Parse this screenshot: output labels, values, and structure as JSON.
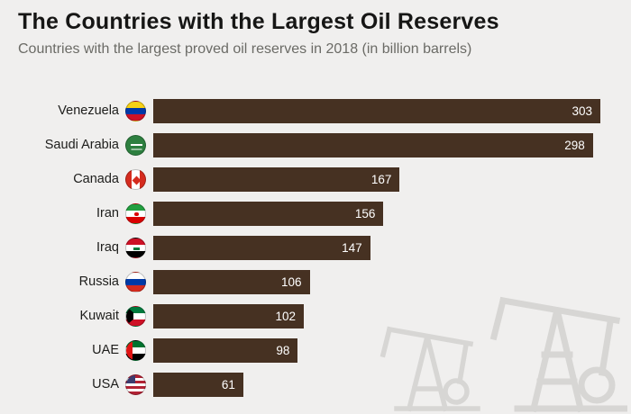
{
  "header": {
    "title": "The Countries with the Largest Oil Reserves",
    "subtitle": "Countries with the largest proved oil reserves in 2018 (in billion barrels)"
  },
  "chart_data": {
    "type": "bar",
    "orientation": "horizontal",
    "title": "The Countries with the Largest Oil Reserves",
    "subtitle": "Countries with the largest proved oil reserves in 2018 (in billion barrels)",
    "unit": "billion barrels",
    "year": "2018",
    "categories": [
      "Venezuela",
      "Saudi Arabia",
      "Canada",
      "Iran",
      "Iraq",
      "Russia",
      "Kuwait",
      "UAE",
      "USA"
    ],
    "values": [
      303,
      298,
      167,
      156,
      147,
      106,
      102,
      98,
      61
    ],
    "flags": [
      "venezuela",
      "saudi-arabia",
      "canada",
      "iran",
      "iraq",
      "russia",
      "kuwait",
      "uae",
      "usa"
    ],
    "xlim": [
      0,
      303
    ],
    "grid": false,
    "legend": false,
    "value_labels": "inside-end"
  },
  "colors": {
    "background": "#f0efee",
    "bar": "#463122",
    "value_label": "#ffffff",
    "title": "#161615",
    "subtitle": "#6b6b66",
    "watermark": "#d7d6d4"
  },
  "icons": {
    "watermark": "oil-pumpjack-icon",
    "flag_style": "circular-country-flag-icon"
  }
}
